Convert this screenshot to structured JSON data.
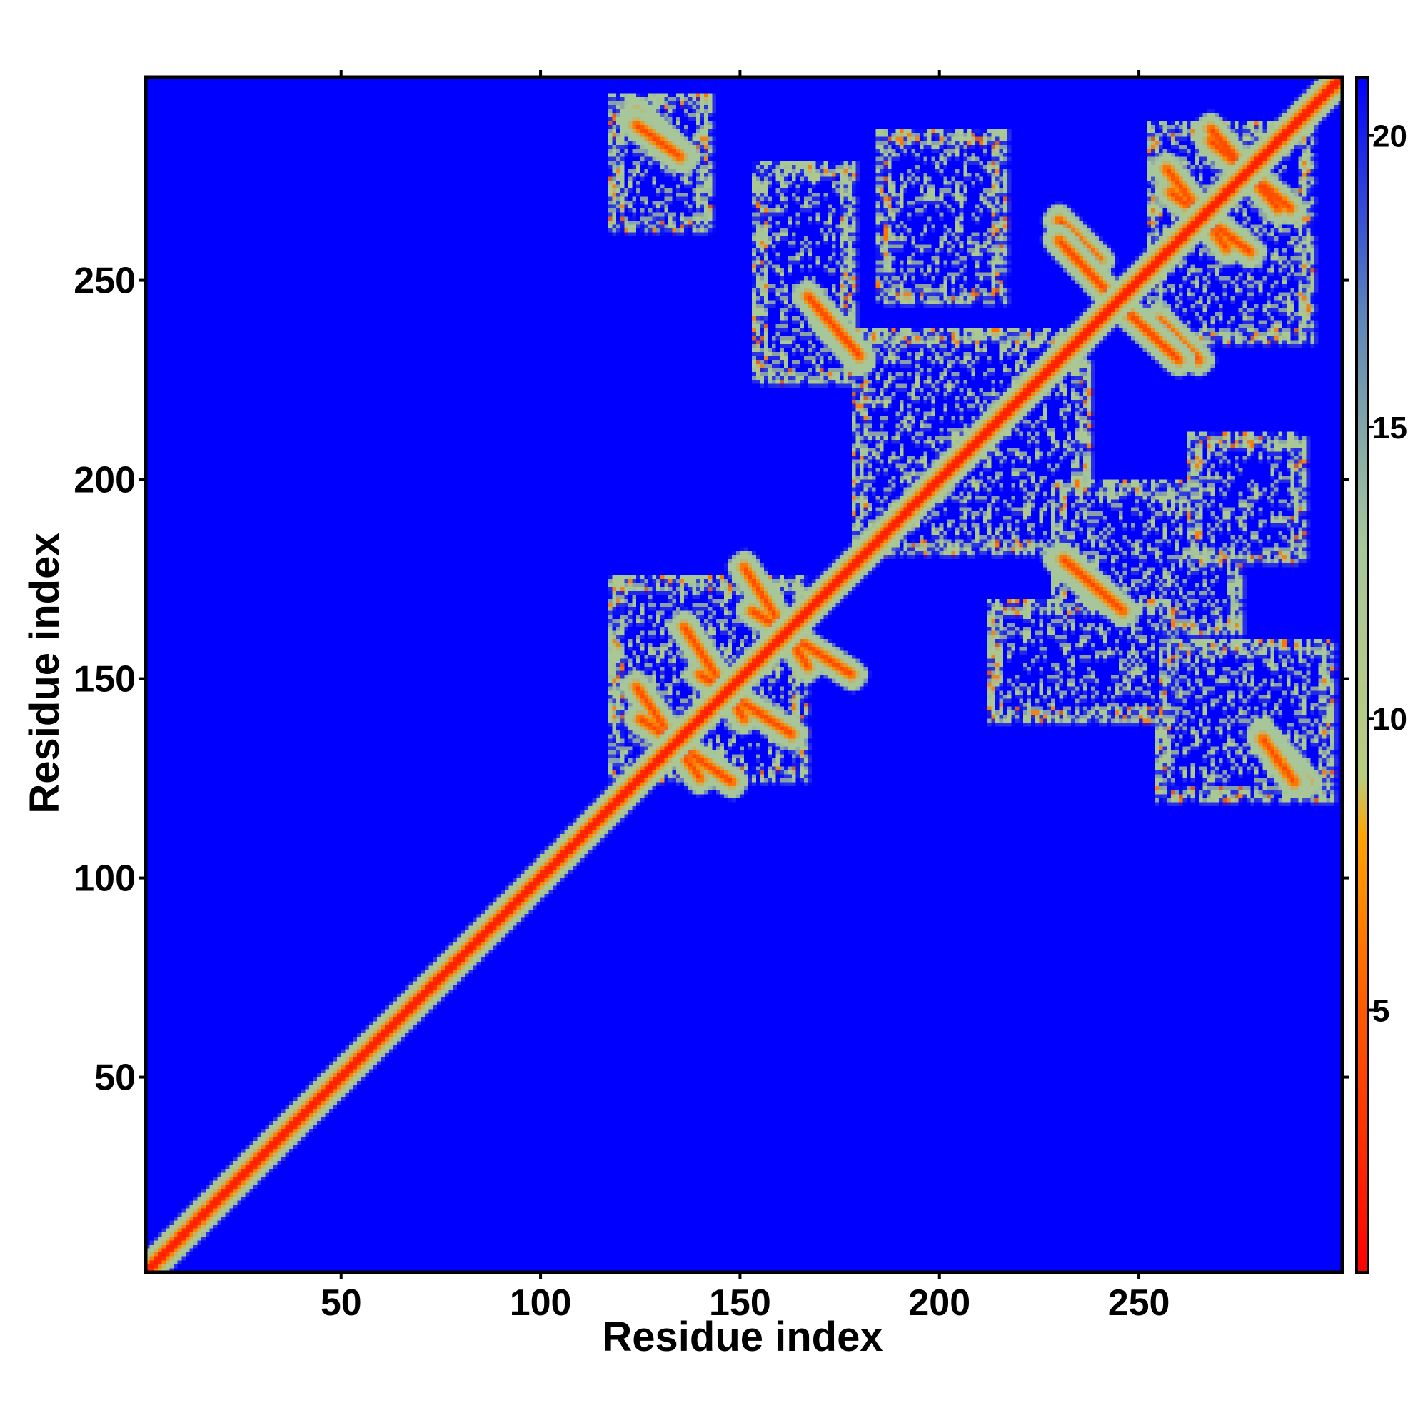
{
  "chart_data": {
    "type": "heatmap",
    "title": "",
    "xlabel": "Residue index",
    "ylabel": "Residue index",
    "xlim": [
      1,
      301
    ],
    "ylim": [
      1,
      301
    ],
    "x_ticks": [
      50,
      100,
      150,
      200,
      250
    ],
    "y_ticks": [
      50,
      100,
      150,
      200,
      250
    ],
    "colorbar": {
      "ticks": [
        5,
        10,
        15,
        20
      ],
      "range": [
        0.5,
        21
      ],
      "stops": [
        {
          "value": 0.5,
          "color": "#ff0000"
        },
        {
          "value": 5,
          "color": "#ff5a00"
        },
        {
          "value": 8,
          "color": "#ffa500"
        },
        {
          "value": 9,
          "color": "#b9cc7e"
        },
        {
          "value": 13,
          "color": "#a7c79b"
        },
        {
          "value": 17,
          "color": "#5b84b9"
        },
        {
          "value": 21,
          "color": "#0000ff"
        }
      ],
      "saturation_color": "#0000ff"
    },
    "background_value": 21,
    "diagonal": {
      "from": 1,
      "to": 301,
      "width": 8
    },
    "features": [
      {
        "type": "strand",
        "x1": 124,
        "y1": 148,
        "x2": 140,
        "y2": 125
      },
      {
        "type": "strand",
        "x1": 136,
        "y1": 163,
        "x2": 151,
        "y2": 140
      },
      {
        "type": "strand",
        "x1": 151,
        "y1": 178,
        "x2": 167,
        "y2": 153
      },
      {
        "type": "strand",
        "x1": 124,
        "y1": 292,
        "x2": 136,
        "y2": 281
      },
      {
        "type": "strand",
        "x1": 171,
        "y1": 240,
        "x2": 180,
        "y2": 230
      },
      {
        "type": "strand",
        "x1": 230,
        "y1": 265,
        "x2": 240,
        "y2": 255
      },
      {
        "type": "strand",
        "x1": 231,
        "y1": 180,
        "x2": 246,
        "y2": 167
      },
      {
        "type": "strand",
        "x1": 246,
        "y1": 243,
        "x2": 260,
        "y2": 230
      },
      {
        "type": "strand",
        "x1": 257,
        "y1": 278,
        "x2": 272,
        "y2": 258
      },
      {
        "type": "strand",
        "x1": 268,
        "y1": 288,
        "x2": 285,
        "y2": 268
      },
      {
        "type": "strand",
        "x1": 281,
        "y1": 135,
        "x2": 289,
        "y2": 124
      },
      {
        "type": "box",
        "x1": 117,
        "y1": 263,
        "x2": 142,
        "y2": 297,
        "value": 12
      },
      {
        "type": "box",
        "x1": 153,
        "y1": 225,
        "x2": 178,
        "y2": 280,
        "value": 13
      },
      {
        "type": "box",
        "x1": 184,
        "y1": 245,
        "x2": 216,
        "y2": 288,
        "value": 13
      },
      {
        "type": "box",
        "x1": 178,
        "y1": 182,
        "x2": 237,
        "y2": 238,
        "value": 12
      },
      {
        "type": "box",
        "x1": 228,
        "y1": 162,
        "x2": 275,
        "y2": 200,
        "value": 12
      },
      {
        "type": "box",
        "x1": 262,
        "y1": 180,
        "x2": 291,
        "y2": 212,
        "value": 13
      },
      {
        "type": "box",
        "x1": 254,
        "y1": 120,
        "x2": 298,
        "y2": 160,
        "value": 12
      },
      {
        "type": "box",
        "x1": 212,
        "y1": 140,
        "x2": 258,
        "y2": 170,
        "value": 13
      },
      {
        "type": "box",
        "x1": 117,
        "y1": 125,
        "x2": 166,
        "y2": 176,
        "value": 12
      },
      {
        "type": "box",
        "x1": 252,
        "y1": 235,
        "x2": 293,
        "y2": 290,
        "value": 12
      }
    ]
  }
}
